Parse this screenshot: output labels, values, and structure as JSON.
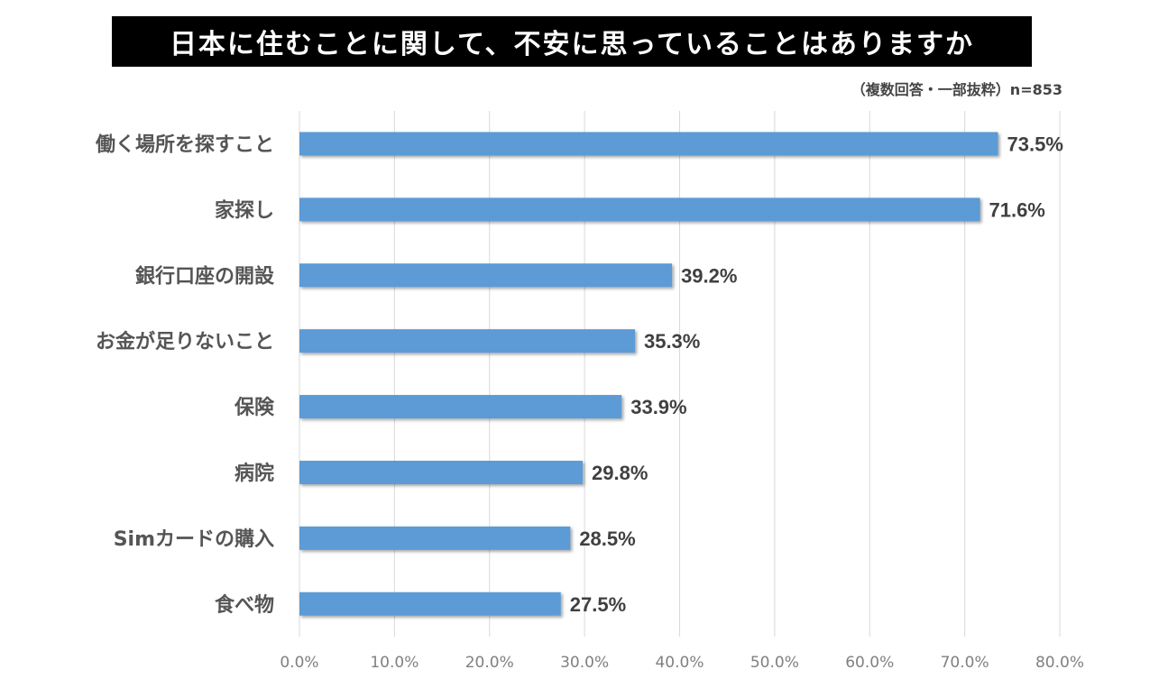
{
  "title": "日本に住むことに関して、不安に思っていることはありますか",
  "subtitle": "（複数回答・一部抜粋）n=853",
  "colors": {
    "bar": "#5b9bd5",
    "grid": "#d9d9d9",
    "title_bg": "#000000"
  },
  "chart_data": {
    "type": "bar",
    "orientation": "horizontal",
    "categories": [
      "働く場所を探すこと",
      "家探し",
      "銀行口座の開設",
      "お金が足りないこと",
      "保険",
      "病院",
      "Simカードの購入",
      "食べ物"
    ],
    "values": [
      73.5,
      71.6,
      39.2,
      35.3,
      33.9,
      29.8,
      28.5,
      27.5
    ],
    "value_labels": [
      "73.5%",
      "71.6%",
      "39.2%",
      "35.3%",
      "33.9%",
      "29.8%",
      "28.5%",
      "27.5%"
    ],
    "xlim": [
      0,
      80
    ],
    "xticks": [
      0,
      10,
      20,
      30,
      40,
      50,
      60,
      70,
      80
    ],
    "xtick_labels": [
      "0.0%",
      "10.0%",
      "20.0%",
      "30.0%",
      "40.0%",
      "50.0%",
      "60.0%",
      "70.0%",
      "80.0%"
    ],
    "grid": true,
    "legend": "none"
  }
}
